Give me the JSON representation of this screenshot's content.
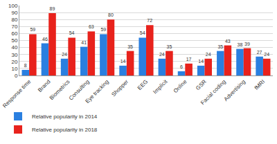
{
  "chart_data": {
    "type": "bar",
    "categories": [
      "Response time",
      "Brand",
      "Biometrics",
      "Consulting",
      "Eye tracking",
      "Shopper",
      "EEG",
      "Implicit",
      "Online",
      "GSR",
      "Facial coding",
      "Advertising",
      "fMRI"
    ],
    "series": [
      {
        "name": "Relative popularity in 2014",
        "color": "#2a7fe0",
        "values": [
          8,
          46,
          24,
          41,
          59,
          14,
          54,
          24,
          6,
          14,
          35,
          38,
          27
        ]
      },
      {
        "name": "Relative popularity in 2018",
        "color": "#e8221c",
        "values": [
          59,
          89,
          54,
          63,
          80,
          35,
          72,
          35,
          17,
          24,
          43,
          39,
          24
        ]
      }
    ],
    "ylim": [
      0,
      100
    ],
    "yticks": [
      0,
      10,
      20,
      30,
      40,
      50,
      60,
      70,
      80,
      90,
      100
    ],
    "grid": true,
    "data_labels": true,
    "legend": "bottom left"
  }
}
